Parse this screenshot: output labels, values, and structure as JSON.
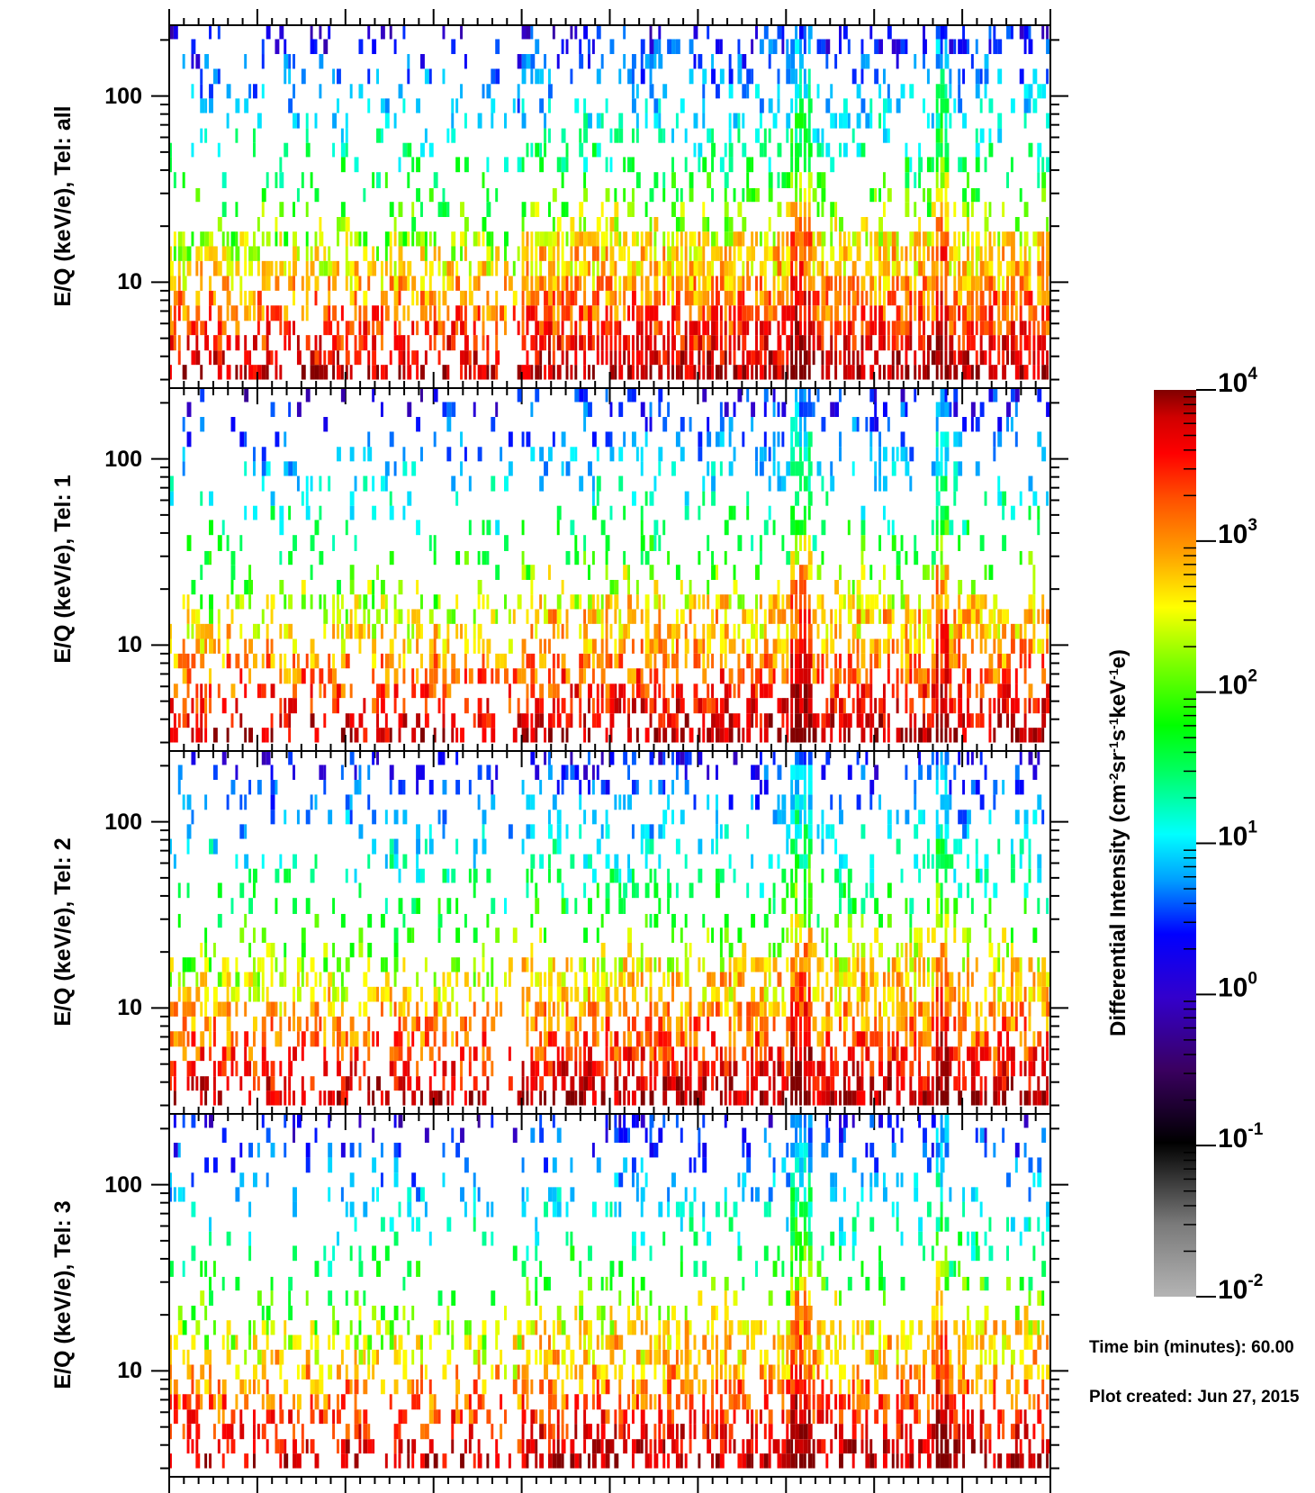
{
  "chart_data": {
    "type": "heatmap",
    "y_scale": "log",
    "ylim": [
      2.7,
      240
    ],
    "yticks": [
      10,
      100
    ],
    "ytick_labels": [
      "10",
      "100"
    ],
    "x_major_ticks": 10,
    "time_bins": 200,
    "energy_bins": [
      3.0,
      3.6,
      4.3,
      5.2,
      6.2,
      7.5,
      9.0,
      10.8,
      13.0,
      15.6,
      18.7,
      22.4,
      27,
      32,
      39,
      47,
      56,
      67,
      81,
      97,
      116,
      140,
      168,
      202,
      240
    ],
    "panels": [
      {
        "ylabel": "E/Q (keV/e), Tel: all",
        "density": 1.0,
        "seed": 11
      },
      {
        "ylabel": "E/Q (keV/e), Tel: 1",
        "density": 0.72,
        "seed": 23
      },
      {
        "ylabel": "E/Q (keV/e), Tel: 2",
        "density": 0.78,
        "seed": 37
      },
      {
        "ylabel": "E/Q (keV/e), Tel: 3",
        "density": 0.7,
        "seed": 53
      }
    ],
    "colorbar": {
      "label": "Differential Intensity (cm-2sr-1s-1keV-1e)",
      "label_parts": [
        "Differential Intensity (cm",
        "-2",
        "sr",
        "-1",
        "s",
        "-1",
        "keV",
        "-1",
        "e)"
      ],
      "scale": "log",
      "range": [
        0.01,
        10000
      ],
      "ticks": [
        {
          "base": "10",
          "exp": "4",
          "value": 10000
        },
        {
          "base": "10",
          "exp": "3",
          "value": 1000
        },
        {
          "base": "10",
          "exp": "2",
          "value": 100
        },
        {
          "base": "10",
          "exp": "1",
          "value": 10
        },
        {
          "base": "10",
          "exp": "0",
          "value": 1
        },
        {
          "base": "10",
          "exp": "-1",
          "value": 0.1
        },
        {
          "base": "10",
          "exp": "-2",
          "value": 0.01
        }
      ],
      "colors": [
        "#b4b4b4",
        "#000000",
        "#3a0060",
        "#3300cc",
        "#0000ff",
        "#00a0ff",
        "#00ffff",
        "#00ff60",
        "#00ff00",
        "#80ff00",
        "#ffff00",
        "#ffa000",
        "#ff5000",
        "#ff0000",
        "#d00000",
        "#800000"
      ]
    }
  },
  "footer": {
    "time_bin": "Time bin (minutes): 60.00",
    "plot_created": "Plot created: Jun 27, 2015"
  }
}
